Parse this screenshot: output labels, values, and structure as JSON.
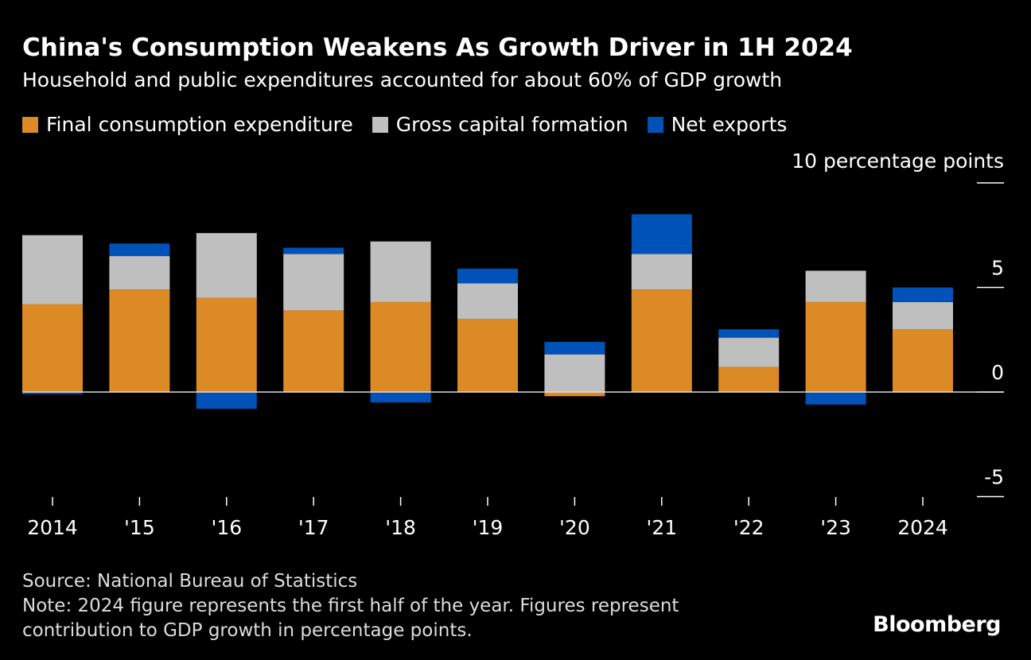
{
  "title": "China's Consumption Weakens As Growth Driver in 1H 2024",
  "subtitle": "Household and public expenditures accounted for about 60% of GDP growth",
  "source": "Source: National Bureau of Statistics",
  "note_line1": "Note: 2024 figure represents the first half of the year. Figures represent",
  "note_line2": "contribution to GDP growth in percentage points.",
  "logo": "Bloomberg",
  "chart_data": {
    "type": "bar",
    "stacked": true,
    "title": "China's Consumption Weakens As Growth Driver in 1H 2024",
    "ylabel": "10 percentage points",
    "ylim": [
      -5,
      10
    ],
    "yticks": [
      "10 percentage points",
      "5",
      "0",
      "-5"
    ],
    "ytick_values": [
      10,
      5,
      0,
      -5
    ],
    "grid": false,
    "legend": "top-left",
    "categories": [
      "2014",
      "'15",
      "'16",
      "'17",
      "'18",
      "'19",
      "'20",
      "'21",
      "'22",
      "'23",
      "2024"
    ],
    "series": [
      {
        "name": "Final consumption expenditure",
        "color": "#dc8a26",
        "values": [
          4.2,
          4.9,
          4.5,
          3.9,
          4.3,
          3.5,
          -0.2,
          4.9,
          1.2,
          4.3,
          3.0
        ]
      },
      {
        "name": "Gross capital formation",
        "color": "#bfbfbf",
        "values": [
          3.3,
          1.6,
          3.1,
          2.7,
          2.9,
          1.7,
          1.8,
          1.7,
          1.4,
          1.5,
          1.3
        ]
      },
      {
        "name": "Net exports",
        "color": "#0052b8",
        "values": [
          -0.1,
          0.6,
          -0.8,
          0.3,
          -0.5,
          0.7,
          0.6,
          1.9,
          0.4,
          -0.6,
          0.7
        ]
      }
    ]
  }
}
